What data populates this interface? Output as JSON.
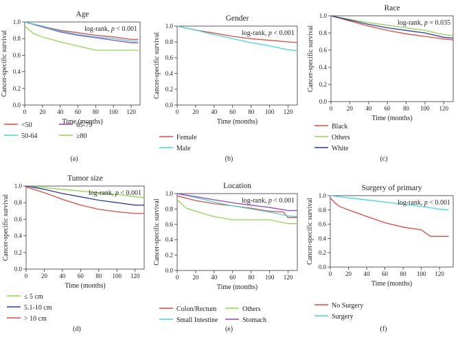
{
  "chart_data": [
    {
      "type": "line",
      "panel_label": "(a)",
      "title": "Age",
      "xlabel": "Time (months)",
      "ylabel": "Cancer-specific survival",
      "annotation_prefix": "log-rank, ",
      "annotation_p": "p",
      "annotation_value": " < 0.001",
      "xlim": [
        0,
        130
      ],
      "ylim": [
        0,
        1.0
      ],
      "xticks": [
        "0",
        "20",
        "40",
        "60",
        "80",
        "100",
        "120"
      ],
      "yticks": [
        "0.0",
        "0.2",
        "0.4",
        "0.6",
        "0.8",
        "1.0"
      ],
      "series": [
        {
          "name": "<50",
          "color": "#e8463a",
          "x": [
            0,
            20,
            40,
            60,
            80,
            100,
            120,
            128
          ],
          "y": [
            1.0,
            0.95,
            0.9,
            0.87,
            0.84,
            0.82,
            0.79,
            0.79
          ]
        },
        {
          "name": "65-79",
          "color": "#9a3fc7",
          "x": [
            0,
            20,
            40,
            60,
            80,
            100,
            120,
            128
          ],
          "y": [
            1.0,
            0.94,
            0.88,
            0.84,
            0.81,
            0.78,
            0.75,
            0.75
          ]
        },
        {
          "name": "50-64",
          "color": "#3ed8e0",
          "x": [
            0,
            20,
            40,
            60,
            80,
            100,
            120,
            128
          ],
          "y": [
            1.0,
            0.95,
            0.89,
            0.85,
            0.82,
            0.8,
            0.77,
            0.77
          ]
        },
        {
          "name": "≥80",
          "color": "#8fd84a",
          "x": [
            0,
            10,
            20,
            40,
            60,
            80,
            100,
            120,
            128
          ],
          "y": [
            0.95,
            0.86,
            0.82,
            0.76,
            0.71,
            0.66,
            0.66,
            0.66,
            0.66
          ]
        }
      ]
    },
    {
      "type": "line",
      "panel_label": "(b)",
      "title": "Gender",
      "xlabel": "Time (months)",
      "ylabel": "Cancer-specific survival",
      "annotation_prefix": "log-rank, ",
      "annotation_p": "p",
      "annotation_value": " < 0.001",
      "xlim": [
        0,
        130
      ],
      "ylim": [
        0,
        1.0
      ],
      "xticks": [
        "0",
        "20",
        "40",
        "60",
        "80",
        "100",
        "120"
      ],
      "yticks": [
        "0.0",
        "0.2",
        "0.4",
        "0.6",
        "0.8",
        "1.0"
      ],
      "series": [
        {
          "name": "Female",
          "color": "#e8463a",
          "x": [
            0,
            20,
            40,
            60,
            80,
            100,
            120,
            130
          ],
          "y": [
            1.0,
            0.95,
            0.91,
            0.87,
            0.84,
            0.82,
            0.8,
            0.79
          ]
        },
        {
          "name": "Male",
          "color": "#3ed8e0",
          "x": [
            0,
            20,
            40,
            60,
            80,
            100,
            120,
            130
          ],
          "y": [
            1.0,
            0.95,
            0.89,
            0.84,
            0.79,
            0.75,
            0.7,
            0.69
          ]
        }
      ]
    },
    {
      "type": "line",
      "panel_label": "(c)",
      "title": "Race",
      "xlabel": "Time (months)",
      "ylabel": "Cancer-specific survival",
      "annotation_prefix": "log-rank, ",
      "annotation_p": "p",
      "annotation_value": " = 0.035",
      "xlim": [
        0,
        130
      ],
      "ylim": [
        0,
        1.0
      ],
      "xticks": [
        "0",
        "20",
        "40",
        "60",
        "80",
        "100",
        "120"
      ],
      "yticks": [
        "0.0",
        "0.2",
        "0.4",
        "0.6",
        "0.8",
        "1.0"
      ],
      "series": [
        {
          "name": "Black",
          "color": "#e8463a",
          "x": [
            0,
            20,
            40,
            60,
            80,
            100,
            120,
            130
          ],
          "y": [
            1.0,
            0.94,
            0.88,
            0.83,
            0.79,
            0.76,
            0.73,
            0.72
          ]
        },
        {
          "name": "Others",
          "color": "#8fd84a",
          "x": [
            0,
            20,
            40,
            60,
            80,
            100,
            120,
            130
          ],
          "y": [
            1.0,
            0.96,
            0.92,
            0.89,
            0.86,
            0.83,
            0.78,
            0.77
          ]
        },
        {
          "name": "White",
          "color": "#2a3aa8",
          "x": [
            0,
            20,
            40,
            60,
            80,
            100,
            120,
            130
          ],
          "y": [
            1.0,
            0.95,
            0.9,
            0.86,
            0.83,
            0.8,
            0.75,
            0.74
          ]
        }
      ]
    },
    {
      "type": "line",
      "panel_label": "(d)",
      "title": "Tumor size",
      "xlabel": "Time (months)",
      "ylabel": "Cancer-specific survival",
      "annotation_prefix": "log-rank, ",
      "annotation_p": "p",
      "annotation_value": " < 0.001",
      "xlim": [
        0,
        130
      ],
      "ylim": [
        0,
        1.0
      ],
      "xticks": [
        "0",
        "20",
        "40",
        "60",
        "80",
        "100",
        "120"
      ],
      "yticks": [
        "0.0",
        "0.2",
        "0.4",
        "0.6",
        "0.8",
        "1.0"
      ],
      "series": [
        {
          "name": "≤ 5 cm",
          "color": "#8fd84a",
          "x": [
            0,
            20,
            40,
            60,
            80,
            100,
            120,
            130
          ],
          "y": [
            1.0,
            0.98,
            0.96,
            0.94,
            0.92,
            0.9,
            0.87,
            0.86
          ]
        },
        {
          "name": "5.1-10 cm",
          "color": "#2a3aa8",
          "x": [
            0,
            20,
            40,
            60,
            80,
            100,
            120,
            130
          ],
          "y": [
            1.0,
            0.96,
            0.91,
            0.87,
            0.83,
            0.8,
            0.77,
            0.77
          ]
        },
        {
          "name": "> 10 cm",
          "color": "#e8463a",
          "x": [
            0,
            20,
            40,
            60,
            80,
            100,
            120,
            130
          ],
          "y": [
            0.99,
            0.92,
            0.84,
            0.77,
            0.72,
            0.69,
            0.67,
            0.67
          ]
        }
      ]
    },
    {
      "type": "line",
      "panel_label": "(e)",
      "title": "Location",
      "xlabel": "Time (months)",
      "ylabel": "Cancer-specific survival",
      "annotation_prefix": "log-rank, ",
      "annotation_p": "p",
      "annotation_value": " < 0.001",
      "xlim": [
        0,
        130
      ],
      "ylim": [
        0,
        1.0
      ],
      "xticks": [
        "0",
        "20",
        "40",
        "60",
        "80",
        "100",
        "120"
      ],
      "yticks": [
        "0.0",
        "0.2",
        "0.4",
        "0.6",
        "0.8",
        "1.0"
      ],
      "series": [
        {
          "name": "Colon/Rectum",
          "color": "#e8463a",
          "x": [
            0,
            20,
            40,
            60,
            80,
            100,
            115,
            120,
            130
          ],
          "y": [
            0.97,
            0.91,
            0.87,
            0.84,
            0.81,
            0.77,
            0.76,
            0.69,
            0.69
          ]
        },
        {
          "name": "Others",
          "color": "#8fd84a",
          "x": [
            0,
            10,
            20,
            40,
            60,
            80,
            100,
            120,
            130
          ],
          "y": [
            0.92,
            0.81,
            0.77,
            0.7,
            0.66,
            0.66,
            0.66,
            0.61,
            0.61
          ]
        },
        {
          "name": "Small Intestine",
          "color": "#3ed8e0",
          "x": [
            0,
            20,
            40,
            60,
            80,
            100,
            120,
            130
          ],
          "y": [
            1.0,
            0.95,
            0.89,
            0.84,
            0.8,
            0.76,
            0.71,
            0.7
          ]
        },
        {
          "name": "Stomach",
          "color": "#9a3fc7",
          "x": [
            0,
            20,
            40,
            60,
            80,
            100,
            120,
            130
          ],
          "y": [
            1.0,
            0.96,
            0.92,
            0.88,
            0.85,
            0.82,
            0.78,
            0.78
          ]
        }
      ]
    },
    {
      "type": "line",
      "panel_label": "(f)",
      "title": "Surgery of primary",
      "xlabel": "Time (months)",
      "ylabel": "Cancer-specific survival",
      "annotation_prefix": "log-rank, ",
      "annotation_p": "p",
      "annotation_value": " < 0.001",
      "xlim": [
        0,
        135
      ],
      "ylim": [
        0,
        1.0
      ],
      "xticks": [
        "0",
        "20",
        "40",
        "60",
        "80",
        "100",
        "120"
      ],
      "yticks": [
        "0.0",
        "0.2",
        "0.4",
        "0.6",
        "0.8",
        "1.0"
      ],
      "series": [
        {
          "name": "No Surgery",
          "color": "#e8463a",
          "x": [
            0,
            5,
            10,
            20,
            40,
            60,
            80,
            100,
            110,
            120,
            130
          ],
          "y": [
            0.97,
            0.9,
            0.85,
            0.8,
            0.71,
            0.62,
            0.56,
            0.52,
            0.43,
            0.43,
            0.43
          ]
        },
        {
          "name": "Surgery",
          "color": "#3ed8e0",
          "x": [
            0,
            20,
            40,
            60,
            80,
            100,
            120,
            130
          ],
          "y": [
            1.0,
            0.97,
            0.94,
            0.91,
            0.88,
            0.85,
            0.81,
            0.8
          ]
        }
      ]
    }
  ]
}
